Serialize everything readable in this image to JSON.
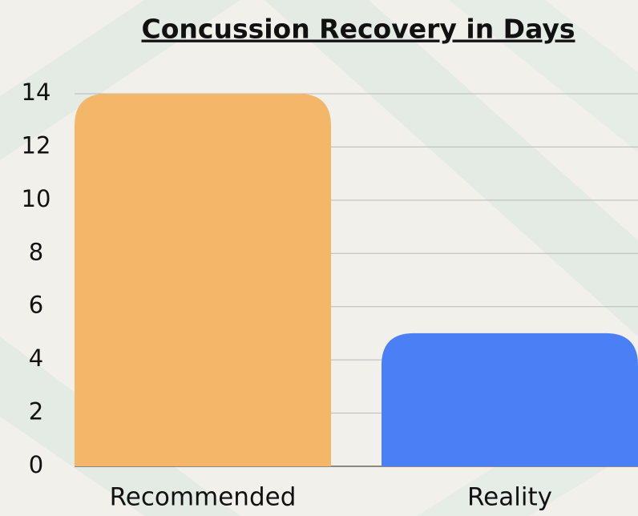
{
  "chart_data": {
    "type": "bar",
    "title": "Concussion Recovery in Days",
    "categories": [
      "Recommended",
      "Reality"
    ],
    "values": [
      14,
      5
    ],
    "colors": [
      "#f4b669",
      "#4a7ff5"
    ],
    "ylim": [
      0,
      14
    ],
    "yticks": [
      0,
      2,
      4,
      6,
      8,
      10,
      12,
      14
    ],
    "grid": true
  }
}
